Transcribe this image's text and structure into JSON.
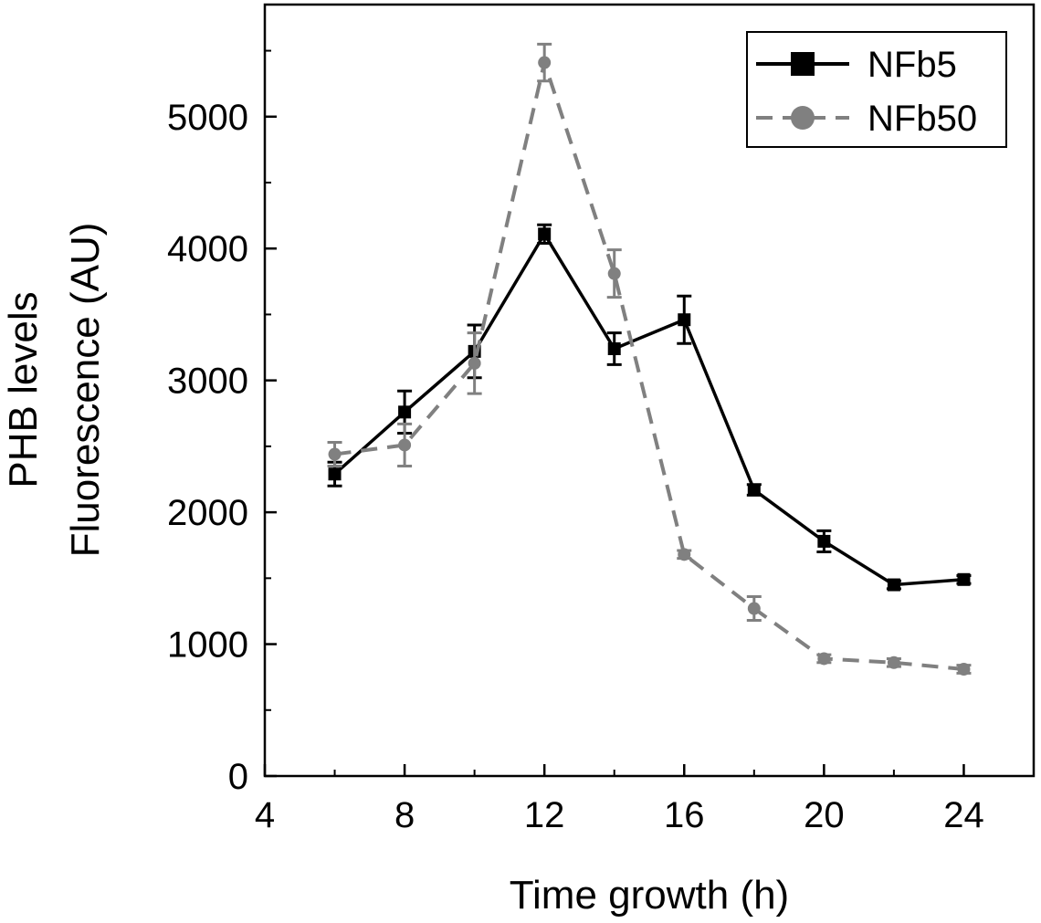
{
  "chart_data": {
    "type": "line",
    "title": "",
    "xlabel": "Time growth (h)",
    "ylabel_lines": [
      "PHB levels",
      "Fluorescence (AU)"
    ],
    "xlim": [
      4,
      26
    ],
    "ylim": [
      0,
      5850
    ],
    "xticks": [
      4,
      8,
      12,
      16,
      20,
      24
    ],
    "yticks": [
      0,
      1000,
      2000,
      3000,
      4000,
      5000
    ],
    "x_minor_step": 2,
    "y_minor_step": 500,
    "legend_position": "top-right",
    "series": [
      {
        "name": "NFb5",
        "marker": "square",
        "line_style": "solid",
        "color": "#000000",
        "x": [
          6,
          8,
          10,
          12,
          14,
          16,
          18,
          20,
          22,
          24
        ],
        "values": [
          2290,
          2760,
          3220,
          4110,
          3240,
          3460,
          2170,
          1780,
          1450,
          1490
        ],
        "errors": [
          90,
          160,
          200,
          70,
          120,
          180,
          40,
          80,
          30,
          30
        ]
      },
      {
        "name": "NFb50",
        "marker": "circle",
        "line_style": "dashed",
        "color": "#808080",
        "x": [
          6,
          8,
          10,
          12,
          14,
          16,
          18,
          20,
          22,
          24
        ],
        "values": [
          2440,
          2510,
          3130,
          5410,
          3810,
          1680,
          1270,
          890,
          860,
          810
        ],
        "errors": [
          90,
          160,
          230,
          140,
          180,
          30,
          90,
          30,
          30,
          30
        ]
      }
    ]
  }
}
